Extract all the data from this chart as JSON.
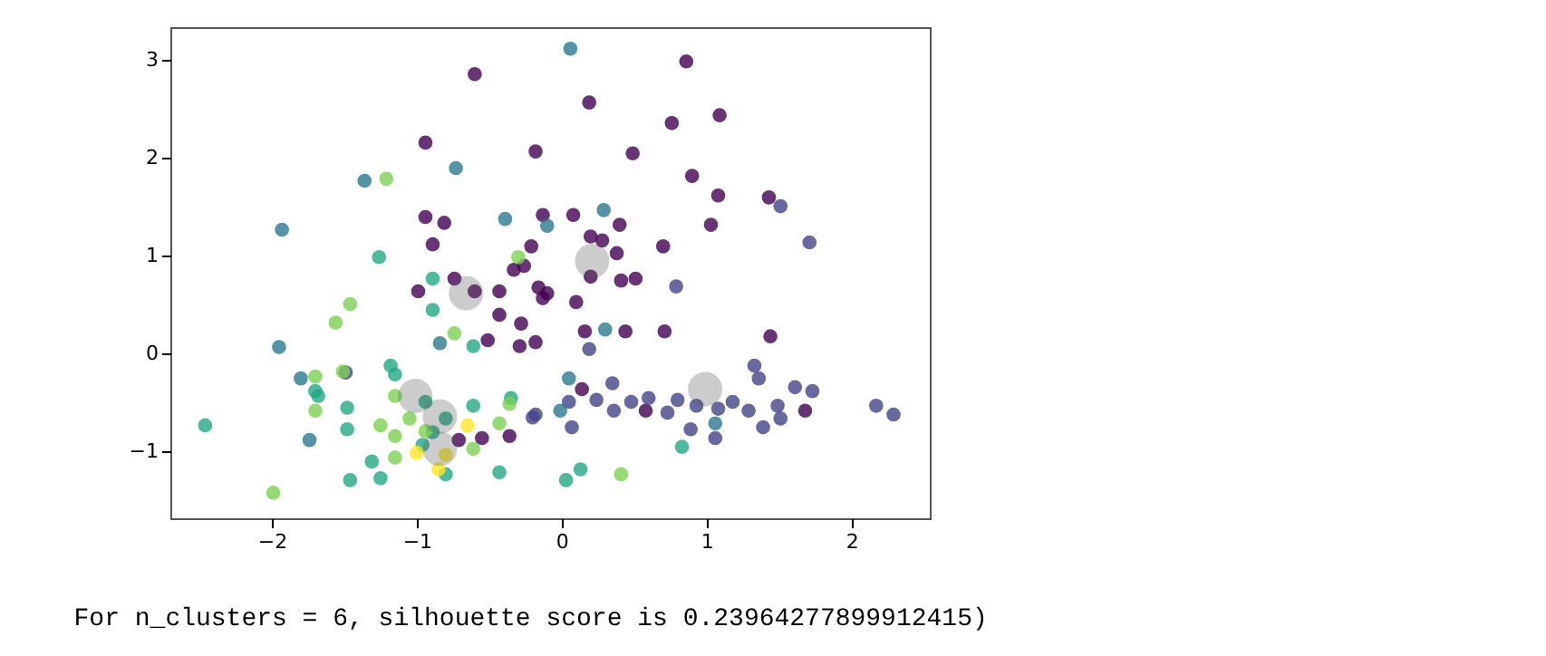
{
  "chart_data": {
    "type": "scatter",
    "xlim": [
      -2.7,
      2.54
    ],
    "ylim": [
      -1.69,
      3.33
    ],
    "xticks": [
      -2,
      -1,
      0,
      1,
      2
    ],
    "yticks": [
      -1,
      0,
      1,
      2,
      3
    ],
    "grid": false,
    "legend": false,
    "annotations": [
      "For n_clusters = 6, silhouette score is 0.23964277899912415)"
    ],
    "series": [
      {
        "color": "#440154",
        "x": [
          -0.6,
          0.86,
          1.09,
          0.19,
          0.76,
          0.49,
          -0.94,
          -0.18,
          0.9,
          1.08,
          1.03,
          -0.13,
          0.08,
          -0.94,
          -0.81,
          0.2,
          0.38,
          0.4,
          0.7,
          1.43,
          0.51,
          0.41,
          -0.16,
          -0.26,
          -0.89,
          -0.99,
          -0.21,
          0.2,
          0.1,
          -0.33,
          -0.1,
          -0.13,
          0.16,
          0.44,
          0.71,
          1.44,
          -0.28,
          -0.29,
          -0.18,
          -0.51,
          0.14,
          0.58,
          1.68,
          -0.6,
          -0.74,
          -0.43,
          -0.43,
          -0.71,
          -0.36,
          -0.55,
          0.28
        ],
        "values": [
          2.85,
          2.98,
          2.43,
          2.56,
          2.35,
          2.04,
          2.15,
          2.06,
          1.81,
          1.61,
          1.31,
          1.41,
          1.41,
          1.39,
          1.33,
          1.19,
          1.02,
          1.31,
          1.09,
          1.59,
          0.76,
          0.74,
          0.67,
          0.89,
          1.11,
          0.63,
          1.09,
          0.78,
          0.52,
          0.85,
          0.61,
          0.56,
          0.22,
          0.22,
          0.22,
          0.17,
          0.3,
          0.07,
          0.11,
          0.13,
          -0.37,
          -0.59,
          -0.59,
          0.63,
          0.76,
          0.63,
          0.39,
          -0.89,
          -0.85,
          -0.87,
          1.15
        ]
      },
      {
        "color": "#414487",
        "x": [
          1.51,
          1.71,
          0.79,
          0.19,
          0.35,
          0.24,
          0.36,
          0.48,
          0.6,
          0.73,
          0.8,
          0.89,
          0.93,
          1.08,
          1.06,
          1.18,
          1.29,
          1.33,
          1.36,
          1.39,
          1.49,
          1.51,
          1.61,
          1.73,
          2.17,
          2.29,
          0.07,
          0.05,
          -0.18,
          -0.2,
          -1.49
        ],
        "values": [
          1.5,
          1.13,
          0.68,
          0.04,
          -0.31,
          -0.48,
          -0.59,
          -0.5,
          -0.46,
          -0.61,
          -0.48,
          -0.78,
          -0.54,
          -0.57,
          -0.87,
          -0.5,
          -0.59,
          -0.13,
          -0.26,
          -0.76,
          -0.54,
          -0.67,
          -0.35,
          -0.39,
          -0.54,
          -0.63,
          -0.76,
          -0.5,
          -0.63,
          -0.66,
          -0.2
        ]
      },
      {
        "color": "#2a788e",
        "x": [
          0.06,
          -1.36,
          -1.93,
          -0.73,
          -0.39,
          -0.1,
          0.29,
          -0.84,
          -1.95,
          -1.8,
          -1.74,
          0.3,
          0.05,
          -0.01,
          1.06
        ],
        "values": [
          3.11,
          1.76,
          1.26,
          1.89,
          1.37,
          1.3,
          1.46,
          0.1,
          0.06,
          -0.26,
          -0.89,
          0.24,
          -0.26,
          -0.59,
          -0.72
        ]
      },
      {
        "color": "#22a884",
        "x": [
          -1.26,
          -0.89,
          -0.89,
          -0.61,
          -2.46,
          -1.18,
          -1.15,
          -1.7,
          -1.68,
          -1.48,
          -1.48,
          -1.31,
          -1.25,
          -1.46,
          -0.96,
          -0.89,
          -0.8,
          -0.43,
          -0.61,
          -0.35,
          -0.94,
          -0.8,
          0.83,
          0.03,
          0.13
        ],
        "values": [
          0.98,
          0.76,
          0.44,
          0.07,
          -0.74,
          -0.13,
          -0.22,
          -0.39,
          -0.44,
          -0.56,
          -0.78,
          -1.11,
          -1.28,
          -1.3,
          -0.94,
          -0.81,
          -1.24,
          -1.22,
          -0.54,
          -0.46,
          -0.5,
          -0.67,
          -0.96,
          -1.3,
          -1.19
        ]
      },
      {
        "color": "#7ad151",
        "x": [
          -1.21,
          -0.3,
          -1.46,
          -1.56,
          -0.74,
          -1.51,
          -1.7,
          -1.7,
          -1.15,
          -1.25,
          -1.15,
          -1.15,
          -1.05,
          -1.99,
          -0.61,
          -0.43,
          -0.36,
          -0.94,
          0.41
        ],
        "values": [
          1.78,
          0.98,
          0.5,
          0.31,
          0.2,
          -0.19,
          -0.24,
          -0.59,
          -0.44,
          -0.74,
          -0.85,
          -1.07,
          -0.67,
          -1.43,
          -0.98,
          -0.72,
          -0.52,
          -0.8,
          -1.24
        ]
      },
      {
        "color": "#fde725",
        "x": [
          -1.0,
          -0.65,
          -0.85,
          -0.8
        ],
        "values": [
          -1.02,
          -0.74,
          -1.19,
          -1.04
        ]
      },
      {
        "type": "bubble",
        "color": "#555555",
        "x": [
          -0.66,
          -1.01,
          -0.84,
          -0.84,
          0.21,
          0.99
        ],
        "values": [
          0.61,
          -0.44,
          -0.65,
          -0.98,
          0.94,
          -0.37
        ],
        "sizes": [
          1,
          1,
          1,
          1,
          1,
          1
        ]
      }
    ]
  }
}
